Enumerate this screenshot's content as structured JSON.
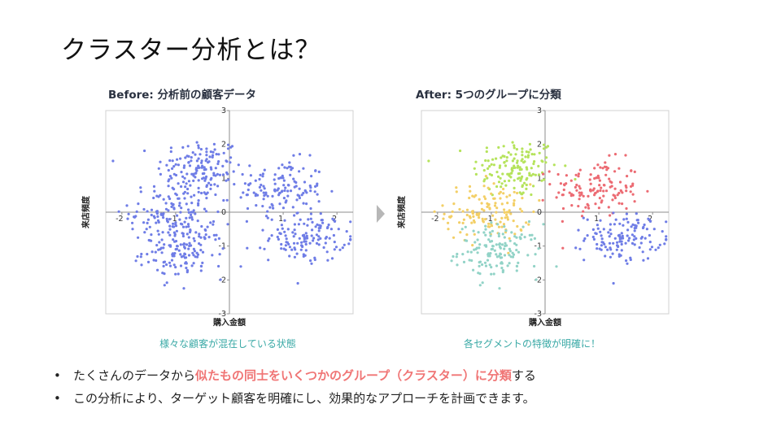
{
  "slide": {
    "title": "クラスター分析とは？"
  },
  "chart_data": [
    {
      "type": "scatter",
      "title": "Before: 分析前の顧客データ",
      "xlabel": "購入金額",
      "ylabel": "来店頻度",
      "xlim": [
        -2.3,
        2.3
      ],
      "ylim": [
        -3,
        3
      ],
      "xticks": [
        -2,
        -1,
        0,
        1,
        2
      ],
      "yticks": [
        -3,
        -2,
        -1,
        0,
        1,
        2,
        3
      ],
      "grid": false,
      "caption": "様々な顧客が混在している状態",
      "point_color": "#6f7de6",
      "groups": [
        {
          "center": [
            -0.55,
            1.3
          ],
          "spread": [
            0.4,
            0.45
          ],
          "count": 140
        },
        {
          "center": [
            0.95,
            0.7
          ],
          "spread": [
            0.4,
            0.42
          ],
          "count": 130
        },
        {
          "center": [
            -1.05,
            0.0
          ],
          "spread": [
            0.4,
            0.42
          ],
          "count": 130
        },
        {
          "center": [
            -0.85,
            -1.15
          ],
          "spread": [
            0.38,
            0.4
          ],
          "count": 140
        },
        {
          "center": [
            1.45,
            -0.75
          ],
          "spread": [
            0.35,
            0.35
          ],
          "count": 130
        }
      ]
    },
    {
      "type": "scatter",
      "title": "After: 5つのグループに分類",
      "xlabel": "購入金額",
      "ylabel": "来店頻度",
      "xlim": [
        -2.3,
        2.3
      ],
      "ylim": [
        -3,
        3
      ],
      "xticks": [
        -2,
        -1,
        0,
        1,
        2
      ],
      "yticks": [
        -3,
        -2,
        -1,
        0,
        1,
        2,
        3
      ],
      "grid": false,
      "caption": "各セグメントの特徴が明確に！",
      "clusters": [
        {
          "center": [
            -0.55,
            1.3
          ],
          "spread": [
            0.4,
            0.45
          ],
          "count": 140,
          "color": "#b5e35b"
        },
        {
          "center": [
            0.95,
            0.7
          ],
          "spread": [
            0.4,
            0.42
          ],
          "count": 130,
          "color": "#ec6b73"
        },
        {
          "center": [
            -1.05,
            0.0
          ],
          "spread": [
            0.4,
            0.42
          ],
          "count": 130,
          "color": "#f3cf66"
        },
        {
          "center": [
            -0.85,
            -1.15
          ],
          "spread": [
            0.38,
            0.4
          ],
          "count": 140,
          "color": "#92d3c7"
        },
        {
          "center": [
            1.45,
            -0.75
          ],
          "spread": [
            0.35,
            0.35
          ],
          "count": 130,
          "color": "#6f7de6"
        }
      ]
    }
  ],
  "bullets": [
    {
      "pre": "たくさんのデータから",
      "highlight": "似たもの同士をいくつかのグループ（クラスター）に分類",
      "post": "する"
    },
    {
      "text": "この分析により、ターゲット顧客を明確にし、効果的なアプローチを計画できます。"
    }
  ],
  "bullet_symbol": "•"
}
